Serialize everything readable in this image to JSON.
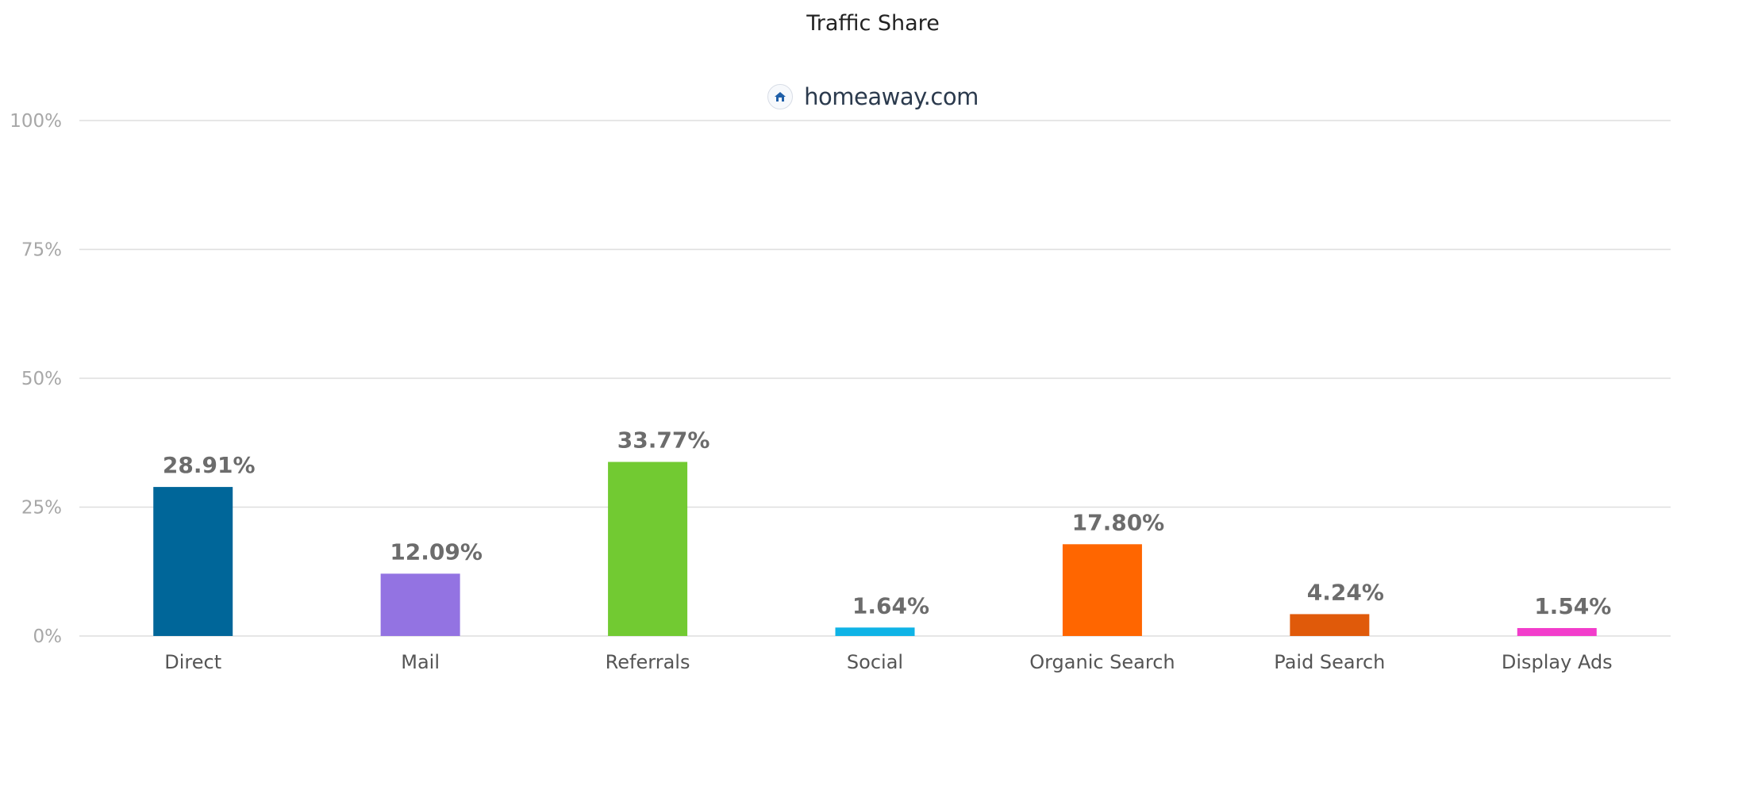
{
  "chart_data": {
    "type": "bar",
    "title": "Traffic Share",
    "site": "homeaway.com",
    "site_icon": "homeaway-favicon-icon",
    "categories": [
      "Direct",
      "Mail",
      "Referrals",
      "Social",
      "Organic Search",
      "Paid Search",
      "Display Ads"
    ],
    "values": [
      28.91,
      12.09,
      33.77,
      1.64,
      17.8,
      4.24,
      1.54
    ],
    "value_labels": [
      "28.91%",
      "12.09%",
      "33.77%",
      "1.64%",
      "17.80%",
      "4.24%",
      "1.54%"
    ],
    "colors": [
      "#006699",
      "#9373e2",
      "#72ca32",
      "#0fb3e6",
      "#ff6600",
      "#e05a0a",
      "#f23dcb"
    ],
    "ylim": [
      0,
      100
    ],
    "yticks": [
      0,
      25,
      50,
      75,
      100
    ],
    "ytick_labels": [
      "0%",
      "25%",
      "50%",
      "75%",
      "100%"
    ],
    "grid": true,
    "legend": "none",
    "xlabel": "",
    "ylabel": ""
  }
}
